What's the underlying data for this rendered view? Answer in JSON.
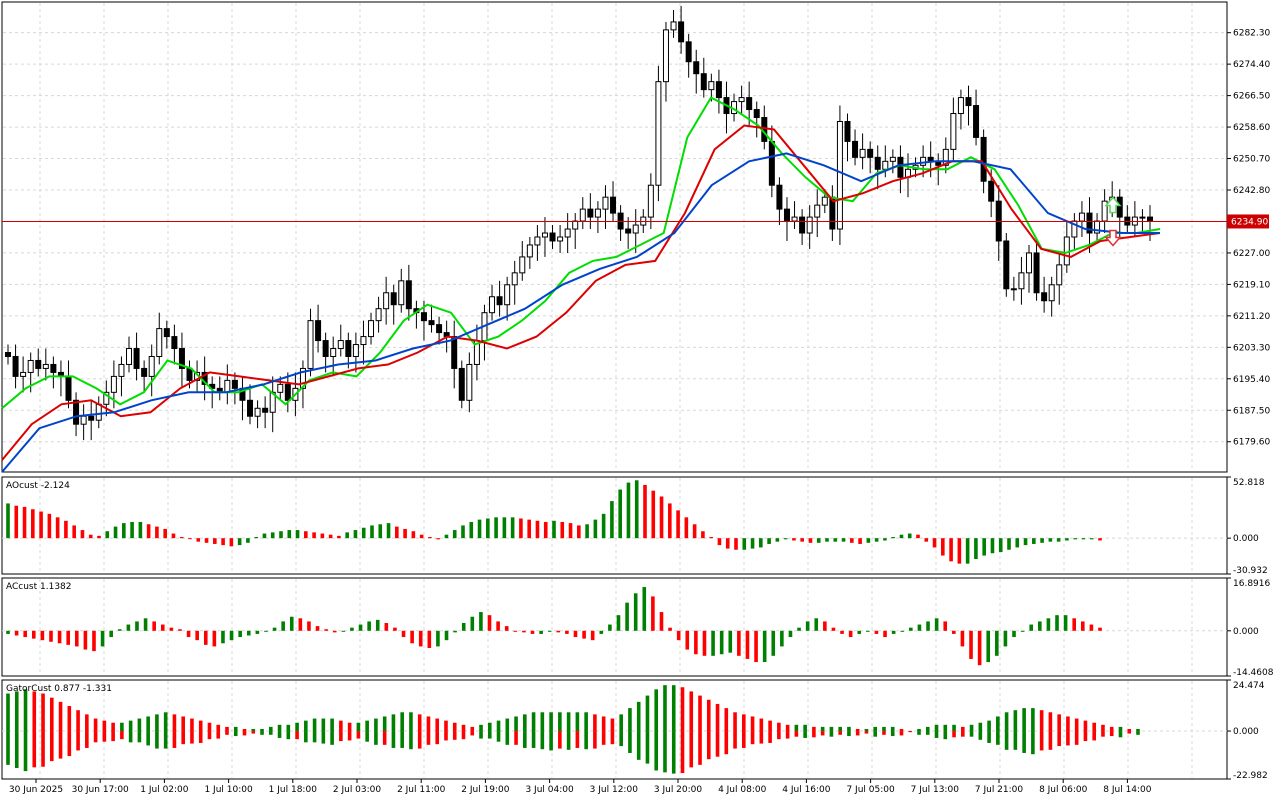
{
  "chart_data": [
    {
      "type": "candlestick",
      "pane": "main",
      "ylim": [
        6172,
        6290
      ],
      "current_price": "6234.90",
      "price_line_color": "#cc0000",
      "y_ticks": [
        "6282.30",
        "6274.40",
        "6266.50",
        "6258.60",
        "6250.70",
        "6242.80",
        "6227.00",
        "6219.10",
        "6211.20",
        "6203.30",
        "6195.40",
        "6187.50",
        "6179.60"
      ],
      "x_ticks": [
        "30 Jun 2025",
        "30 Jun 17:00",
        "1 Jul 02:00",
        "1 Jul 10:00",
        "1 Jul 18:00",
        "2 Jul 03:00",
        "2 Jul 11:00",
        "2 Jul 19:00",
        "3 Jul 04:00",
        "3 Jul 12:00",
        "3 Jul 20:00",
        "4 Jul 08:00",
        "4 Jul 16:00",
        "7 Jul 05:00",
        "7 Jul 13:00",
        "7 Jul 21:00",
        "8 Jul 06:00",
        "8 Jul 14:00"
      ],
      "candle_closes": [
        6201,
        6196,
        6197,
        6200,
        6198,
        6199,
        6197,
        6196,
        6190,
        6184,
        6186,
        6185,
        6189,
        6192,
        6196,
        6199,
        6203,
        6198,
        6196,
        6201,
        6208,
        6206,
        6203,
        6198,
        6195,
        6197,
        6194,
        6193,
        6192,
        6195,
        6193,
        6190,
        6186,
        6188,
        6187,
        6192,
        6194,
        6190,
        6193,
        6198,
        6210,
        6205,
        6201,
        6203,
        6205,
        6201,
        6204,
        6206,
        6210,
        6213,
        6217,
        6214,
        6220,
        6213,
        6212,
        6210,
        6209,
        6207,
        6206,
        6198,
        6190,
        6199,
        6205,
        6212,
        6216,
        6214,
        6219,
        6222,
        6226,
        6229,
        6231,
        6232,
        6230,
        6231,
        6233,
        6235,
        6238,
        6236,
        6238,
        6241,
        6237,
        6233,
        6232,
        6234,
        6236,
        6244,
        6270,
        6283,
        6285,
        6280,
        6275,
        6272,
        6268,
        6270,
        6266,
        6262,
        6265,
        6266,
        6263,
        6261,
        6255,
        6244,
        6238,
        6235,
        6236,
        6232,
        6236,
        6239,
        6241,
        6233,
        6260,
        6255,
        6251,
        6253,
        6251,
        6248,
        6250,
        6251,
        6246,
        6248,
        6249,
        6251,
        6250,
        6249,
        6253,
        6262,
        6266,
        6264,
        6256,
        6245,
        6240,
        6230,
        6218,
        6218,
        6222,
        6227,
        6217,
        6215,
        6219,
        6224,
        6231,
        6235,
        6237,
        6232,
        6235,
        6240,
        6241,
        6236,
        6234,
        6236,
        6236,
        6235
      ],
      "ma_lines": [
        {
          "color": "#00dd00",
          "values": [
            6188,
            6193,
            6196,
            6196,
            6193,
            6189,
            6192,
            6200,
            6198,
            6192,
            6192,
            6194,
            6189,
            6195,
            6197,
            6196,
            6202,
            6210,
            6214,
            6212,
            6204,
            6206,
            6210,
            6215,
            6222,
            6225,
            6226,
            6229,
            6232,
            6256,
            6266,
            6263,
            6259,
            6252,
            6246,
            6241,
            6240,
            6247,
            6249,
            6248,
            6248,
            6251,
            6248,
            6239,
            6228,
            6227,
            6229,
            6232,
            6232,
            6233
          ]
        },
        {
          "color": "#dd0000",
          "values": [
            6175,
            6184,
            6189,
            6190,
            6186,
            6187,
            6193,
            6197,
            6196,
            6195,
            6194,
            6196,
            6198,
            6199,
            6202,
            6206,
            6205,
            6203,
            6206,
            6212,
            6220,
            6224,
            6225,
            6237,
            6253,
            6259,
            6258,
            6249,
            6240,
            6242,
            6245,
            6247,
            6250,
            6250,
            6238,
            6228,
            6226,
            6230,
            6231,
            6232
          ]
        },
        {
          "color": "#0044cc",
          "values": [
            6172,
            6183,
            6186,
            6187,
            6190,
            6192,
            6192,
            6194,
            6197,
            6199,
            6200,
            6203,
            6205,
            6209,
            6213,
            6219,
            6223,
            6226,
            6232,
            6244,
            6250,
            6252,
            6249,
            6245,
            6249,
            6250,
            6250,
            6248,
            6237,
            6233,
            6232,
            6232
          ]
        }
      ],
      "up_arrow_color": "#5cd65c",
      "down_arrow_color": "#e03030"
    },
    {
      "type": "histogram",
      "pane": "AOcust",
      "title": "AOcust -2.124",
      "ylim": [
        -30.932,
        52.818
      ],
      "y_ticks": [
        "52.818",
        "0.000",
        "-30.932"
      ],
      "up_color": "#008000",
      "down_color": "#ff0000",
      "values": [
        30,
        28,
        27,
        25,
        23,
        21,
        18,
        15,
        11,
        7,
        3,
        2,
        6,
        10,
        13,
        14,
        14,
        12,
        10,
        8,
        4,
        1,
        0,
        -3,
        -4,
        -5,
        -6,
        -7,
        -6,
        -4,
        1,
        4,
        5,
        6,
        7,
        7,
        6,
        5,
        4,
        3,
        2,
        5,
        7,
        9,
        11,
        12,
        13,
        10,
        8,
        6,
        3,
        1,
        -1,
        3,
        7,
        11,
        14,
        16,
        17,
        18,
        18,
        18,
        17,
        16,
        15,
        14,
        15,
        14,
        13,
        11,
        12,
        16,
        21,
        32,
        42,
        48,
        50,
        46,
        41,
        36,
        30,
        24,
        18,
        12,
        6,
        1,
        -6,
        -9,
        -10,
        -10,
        -9,
        -8,
        -5,
        -3,
        -1,
        -2,
        -3,
        -4,
        -4,
        -3,
        -3,
        -3,
        -4,
        -5,
        -4,
        -3,
        -2,
        1,
        3,
        4,
        3,
        -3,
        -8,
        -15,
        -20,
        -22,
        -22,
        -18,
        -15,
        -13,
        -12,
        -10,
        -8,
        -6,
        -5,
        -4,
        -3,
        -3,
        -2,
        -1,
        -1,
        -1,
        -2
      ]
    },
    {
      "type": "histogram",
      "pane": "ACcust",
      "title": "ACcust 1.1382",
      "ylim": [
        -14.4608,
        16.8916
      ],
      "y_ticks": [
        "16.8916",
        "0.000",
        "-14.4608"
      ],
      "up_color": "#008000",
      "down_color": "#ff0000",
      "values": [
        -1,
        -1.5,
        -2,
        -2.5,
        -3,
        -3.5,
        -4,
        -4.5,
        -5,
        -6,
        -6.5,
        -5,
        -2,
        0.5,
        2,
        3,
        4,
        3,
        2,
        1,
        0.5,
        -2,
        -3,
        -4.5,
        -5,
        -4,
        -3,
        -2,
        -1.5,
        -1,
        0,
        1,
        3,
        4.5,
        4,
        3,
        1.5,
        0.5,
        -0.5,
        0,
        1,
        2,
        3,
        3.5,
        2.5,
        1,
        -2,
        -4,
        -5,
        -5.5,
        -5,
        -3,
        -0.5,
        2.5,
        4.5,
        6,
        5,
        3,
        1.5,
        0,
        -0.5,
        -1,
        -1,
        0,
        -0.5,
        -1,
        -2,
        -2.5,
        -3,
        -1,
        2,
        5,
        9,
        12,
        14,
        11,
        6,
        1,
        -3,
        -6,
        -7.5,
        -8,
        -8,
        -7.5,
        -7,
        -8,
        -9,
        -10,
        -10,
        -8,
        -5,
        -2,
        1,
        3,
        4,
        3,
        1,
        -1,
        -2,
        -1,
        0,
        -1,
        -2,
        -1,
        0,
        1,
        2,
        3,
        4,
        3,
        -1,
        -5,
        -9,
        -11,
        -10,
        -8,
        -5,
        -2,
        0,
        2,
        3,
        4,
        5,
        5,
        4,
        3,
        2,
        1
      ]
    },
    {
      "type": "gator",
      "pane": "GatorCust",
      "title": "GatorCust 0.877 -1.331",
      "ylim": [
        -22.982,
        24.474
      ],
      "y_ticks": [
        "24.474",
        "0.000",
        "-22.982"
      ],
      "up_color": "#008000",
      "down_color": "#ff0000",
      "upper": [
        18,
        19,
        20,
        19,
        18,
        16,
        14,
        12,
        10,
        8,
        6,
        5,
        4,
        4,
        5,
        6,
        7,
        8,
        9,
        8,
        7,
        6,
        5,
        4,
        3,
        2,
        2,
        1,
        1,
        1,
        2,
        3,
        3,
        4,
        5,
        6,
        6,
        6,
        5,
        4,
        4,
        5,
        6,
        7,
        8,
        9,
        9,
        8,
        7,
        6,
        5,
        4,
        3,
        2,
        3,
        4,
        5,
        6,
        7,
        8,
        9,
        9,
        9,
        9,
        9,
        9,
        9,
        8,
        7,
        6,
        8,
        11,
        14,
        17,
        20,
        22,
        22,
        21,
        19,
        17,
        15,
        13,
        11,
        9,
        8,
        7,
        6,
        5,
        4,
        3,
        3,
        3,
        2,
        2,
        2,
        2,
        2,
        1,
        1,
        2,
        2,
        2,
        1,
        0,
        1,
        2,
        3,
        3,
        3,
        2,
        3,
        4,
        5,
        7,
        9,
        10,
        11,
        11,
        10,
        9,
        8,
        7,
        6,
        5,
        4,
        3,
        2,
        2,
        1,
        1
      ]
    }
  ]
}
